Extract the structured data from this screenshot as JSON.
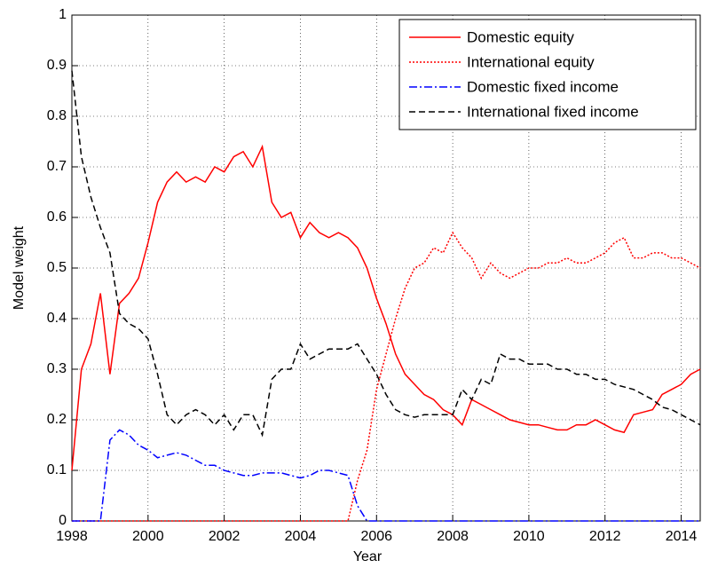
{
  "chart_data": {
    "type": "line",
    "xlabel": "Year",
    "ylabel": "Model weight",
    "x": [
      1998,
      1998.25,
      1998.5,
      1998.75,
      1999,
      1999.25,
      1999.5,
      1999.75,
      2000,
      2000.25,
      2000.5,
      2000.75,
      2001,
      2001.25,
      2001.5,
      2001.75,
      2002,
      2002.25,
      2002.5,
      2002.75,
      2003,
      2003.25,
      2003.5,
      2003.75,
      2004,
      2004.25,
      2004.5,
      2004.75,
      2005,
      2005.25,
      2005.5,
      2005.75,
      2006,
      2006.25,
      2006.5,
      2006.75,
      2007,
      2007.25,
      2007.5,
      2007.75,
      2008,
      2008.25,
      2008.5,
      2008.75,
      2009,
      2009.25,
      2009.5,
      2009.75,
      2010,
      2010.25,
      2010.5,
      2010.75,
      2011,
      2011.25,
      2011.5,
      2011.75,
      2012,
      2012.25,
      2012.5,
      2012.75,
      2013,
      2013.25,
      2013.5,
      2013.75,
      2014,
      2014.25,
      2014.5
    ],
    "series": [
      {
        "name": "Domestic equity",
        "color": "#ff0000",
        "dash": "solid",
        "values": [
          0.1,
          0.3,
          0.35,
          0.45,
          0.29,
          0.43,
          0.45,
          0.48,
          0.55,
          0.63,
          0.67,
          0.69,
          0.67,
          0.68,
          0.67,
          0.7,
          0.69,
          0.72,
          0.73,
          0.7,
          0.74,
          0.63,
          0.6,
          0.61,
          0.56,
          0.59,
          0.57,
          0.56,
          0.57,
          0.56,
          0.54,
          0.5,
          0.44,
          0.39,
          0.33,
          0.29,
          0.27,
          0.25,
          0.24,
          0.22,
          0.21,
          0.19,
          0.24,
          0.23,
          0.22,
          0.21,
          0.2,
          0.195,
          0.19,
          0.19,
          0.185,
          0.18,
          0.18,
          0.19,
          0.19,
          0.2,
          0.19,
          0.18,
          0.175,
          0.21,
          0.215,
          0.22,
          0.25,
          0.26,
          0.27,
          0.29,
          0.3
        ]
      },
      {
        "name": "International equity",
        "color": "#ff0000",
        "dash": "dotted",
        "values": [
          0,
          0,
          0,
          0,
          0,
          0,
          0,
          0,
          0,
          0,
          0,
          0,
          0,
          0,
          0,
          0,
          0,
          0,
          0,
          0,
          0,
          0,
          0,
          0,
          0,
          0,
          0,
          0,
          0,
          0,
          0.08,
          0.14,
          0.26,
          0.33,
          0.4,
          0.46,
          0.5,
          0.51,
          0.54,
          0.53,
          0.57,
          0.54,
          0.52,
          0.48,
          0.51,
          0.49,
          0.48,
          0.49,
          0.5,
          0.5,
          0.51,
          0.51,
          0.52,
          0.51,
          0.51,
          0.52,
          0.53,
          0.55,
          0.56,
          0.52,
          0.52,
          0.53,
          0.53,
          0.52,
          0.52,
          0.51,
          0.5
        ]
      },
      {
        "name": "Domestic fixed income",
        "color": "#0000ff",
        "dash": "dashdot",
        "values": [
          0,
          0,
          0,
          0,
          0.16,
          0.18,
          0.17,
          0.15,
          0.14,
          0.125,
          0.13,
          0.135,
          0.13,
          0.12,
          0.11,
          0.11,
          0.1,
          0.095,
          0.09,
          0.09,
          0.095,
          0.095,
          0.095,
          0.09,
          0.085,
          0.09,
          0.1,
          0.1,
          0.095,
          0.09,
          0.03,
          0,
          0,
          0,
          0,
          0,
          0,
          0,
          0,
          0,
          0,
          0,
          0,
          0,
          0,
          0,
          0,
          0,
          0,
          0,
          0,
          0,
          0,
          0,
          0,
          0,
          0,
          0,
          0,
          0,
          0,
          0,
          0,
          0,
          0,
          0,
          0
        ]
      },
      {
        "name": "International fixed income",
        "color": "#000000",
        "dash": "dashed",
        "values": [
          0.89,
          0.72,
          0.64,
          0.58,
          0.53,
          0.41,
          0.39,
          0.38,
          0.36,
          0.29,
          0.21,
          0.19,
          0.21,
          0.22,
          0.21,
          0.19,
          0.21,
          0.18,
          0.21,
          0.21,
          0.17,
          0.28,
          0.3,
          0.3,
          0.35,
          0.32,
          0.33,
          0.34,
          0.34,
          0.34,
          0.35,
          0.32,
          0.29,
          0.25,
          0.22,
          0.21,
          0.205,
          0.21,
          0.21,
          0.21,
          0.21,
          0.26,
          0.24,
          0.28,
          0.27,
          0.33,
          0.32,
          0.32,
          0.31,
          0.31,
          0.31,
          0.3,
          0.3,
          0.29,
          0.29,
          0.28,
          0.28,
          0.27,
          0.265,
          0.26,
          0.25,
          0.24,
          0.225,
          0.22,
          0.21,
          0.2,
          0.19
        ]
      }
    ],
    "xlim": [
      1998,
      2014.5
    ],
    "xticks": [
      1998,
      2000,
      2002,
      2004,
      2006,
      2008,
      2010,
      2012,
      2014
    ],
    "ylim": [
      0,
      1
    ],
    "yticks": [
      0,
      0.1,
      0.2,
      0.3,
      0.4,
      0.5,
      0.6,
      0.7,
      0.8,
      0.9,
      1
    ],
    "grid": true,
    "legend": "northeast"
  }
}
